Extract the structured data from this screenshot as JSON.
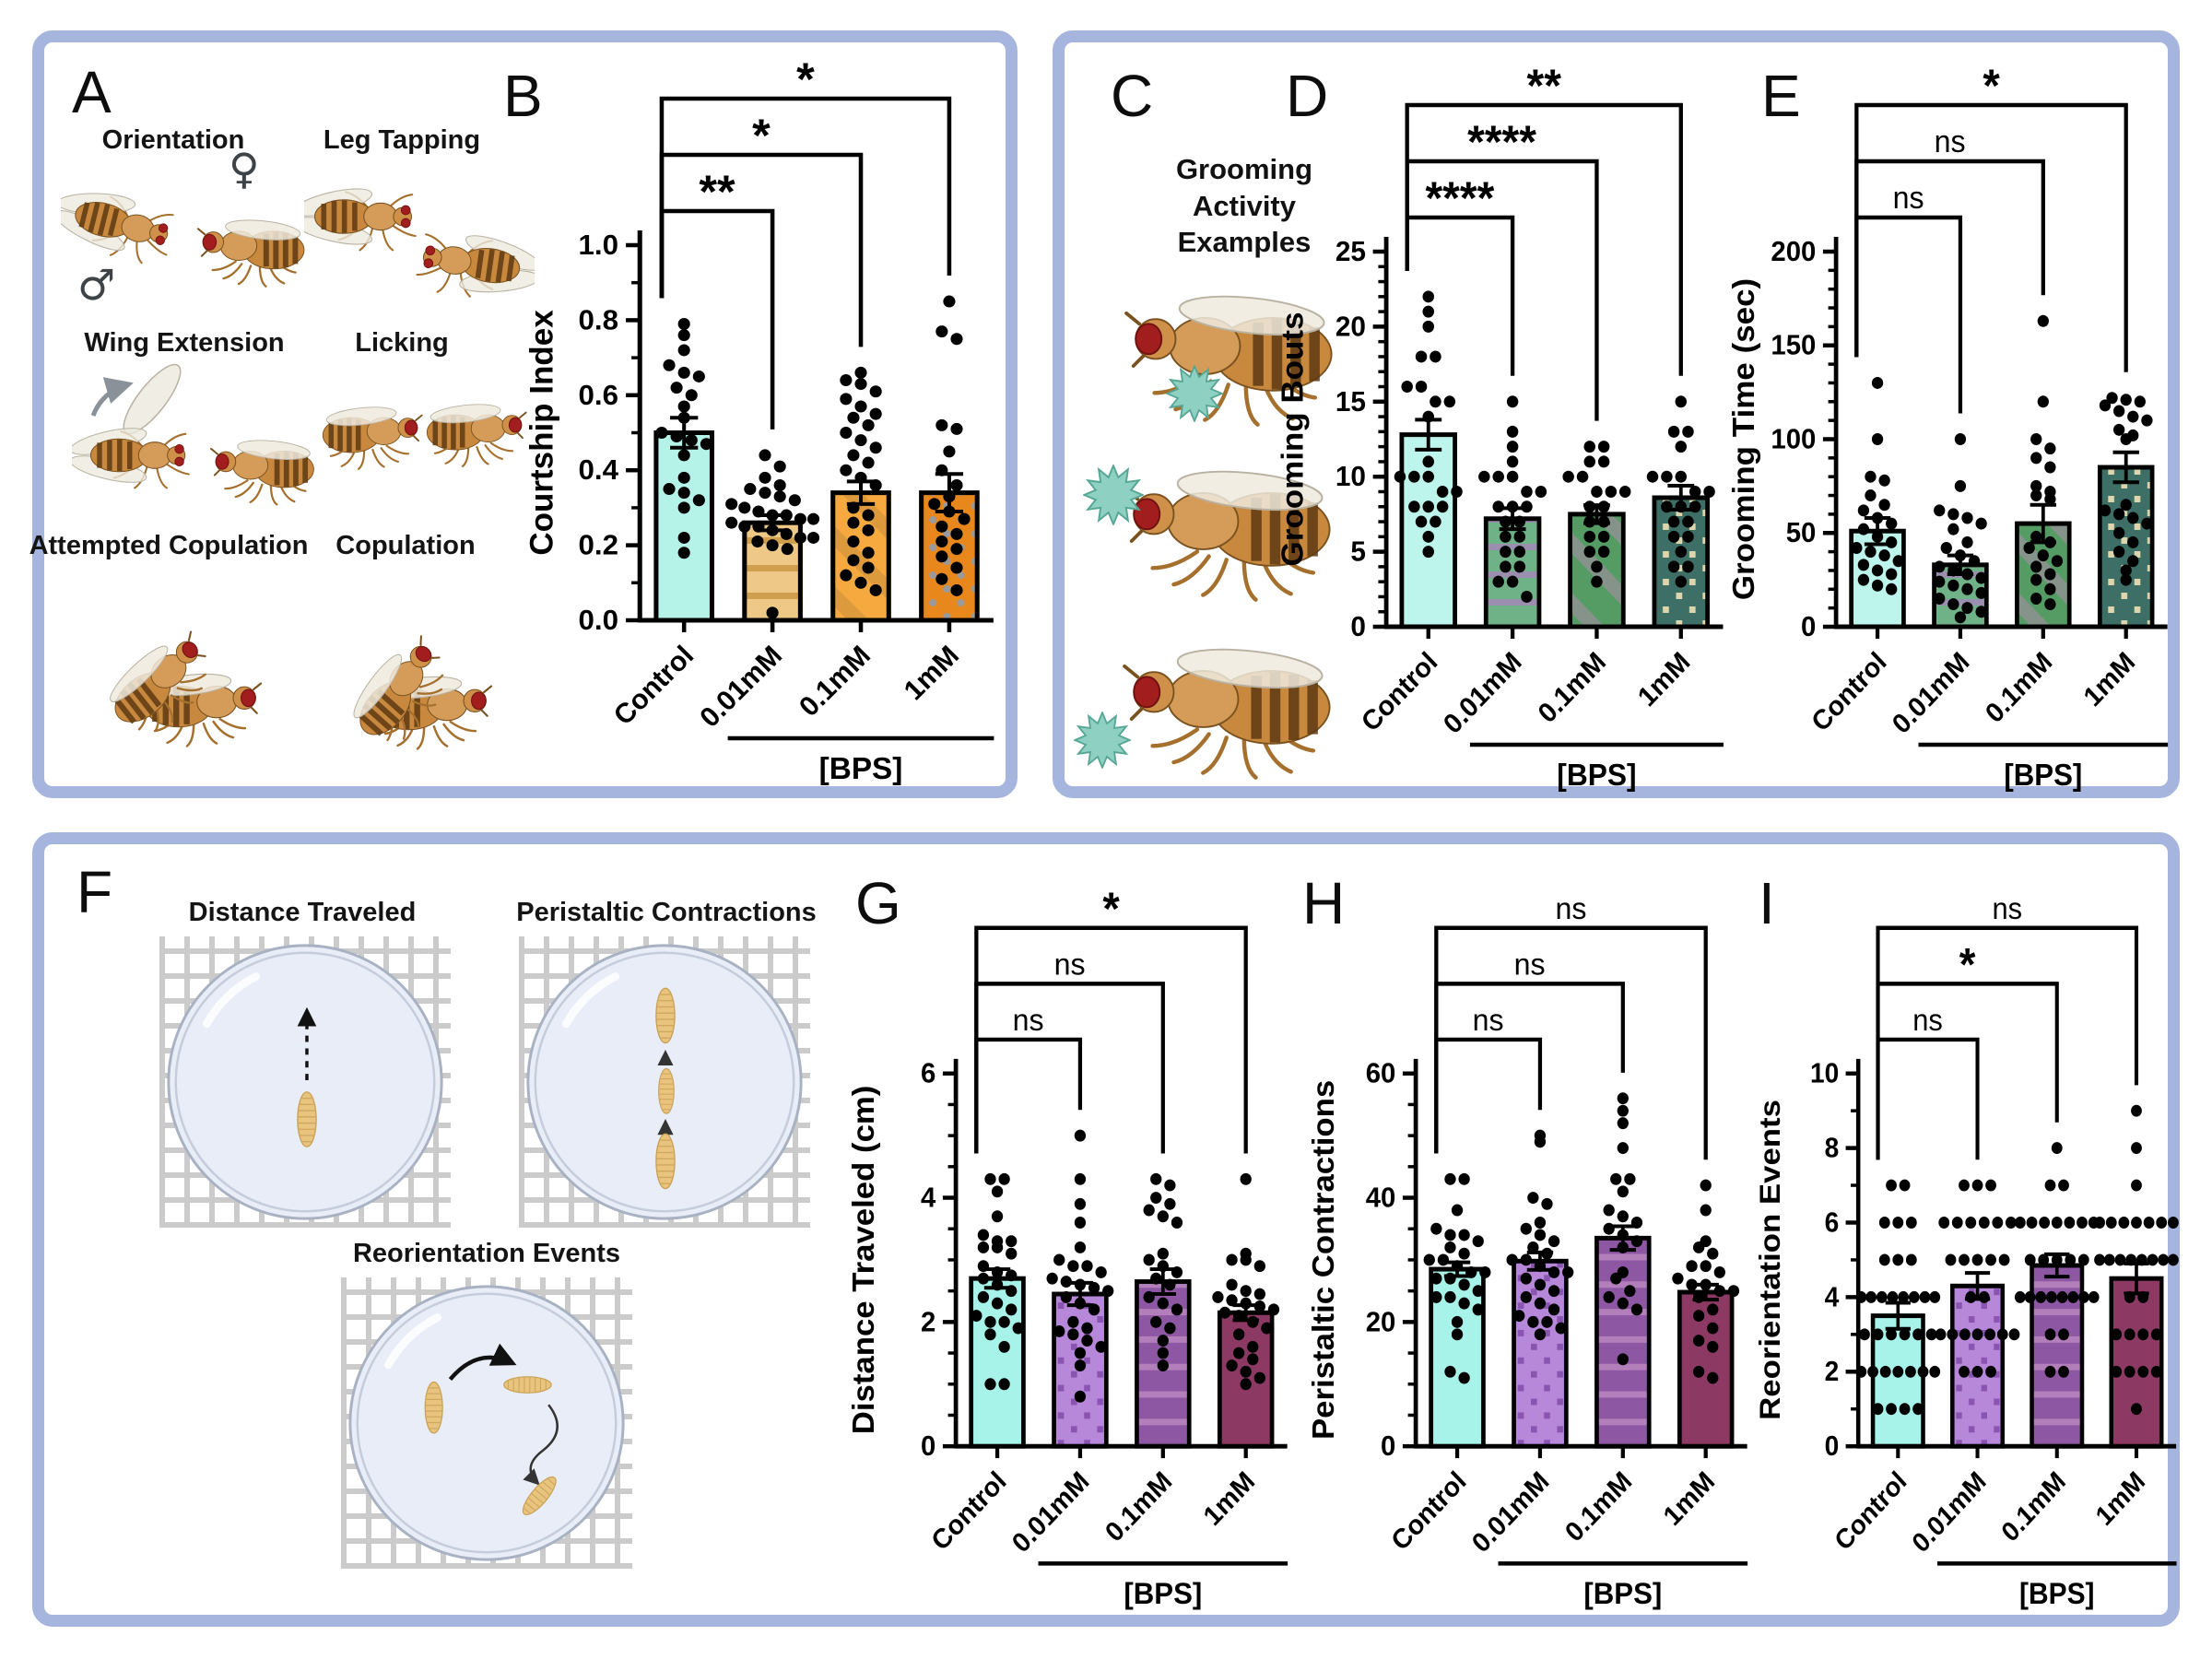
{
  "figure": {
    "border_color": "#a6b5dd",
    "background": "#ffffff"
  },
  "panel_letters": {
    "A": "A",
    "B": "B",
    "C": "C",
    "D": "D",
    "E": "E",
    "F": "F",
    "G": "G",
    "H": "H",
    "I": "I"
  },
  "panel_a": {
    "behaviors": [
      "Orientation",
      "Leg Tapping",
      "Wing Extension",
      "Licking",
      "Attempted Copulation",
      "Copulation"
    ],
    "male_symbol": "♂",
    "female_symbol": "♀"
  },
  "panel_c": {
    "title_lines": [
      "Grooming",
      "Activity",
      "Examples"
    ]
  },
  "panel_f": {
    "labels": [
      "Distance Traveled",
      "Peristaltic Contractions",
      "Reorientation Events"
    ]
  },
  "x_axis": {
    "categories": [
      "Control",
      "0.01mM",
      "0.1mM",
      "1mM"
    ],
    "group_label": "[BPS]"
  },
  "chart_data": [
    {
      "panel": "B",
      "type": "bar",
      "ylabel": "Courtship Index",
      "ylim": [
        0,
        1.0
      ],
      "ytick_step": 0.2,
      "yminor_step": 0.1,
      "ytick_decimals": 1,
      "categories": [
        "Control",
        "0.01mM",
        "0.1mM",
        "1mM"
      ],
      "group_label": "[BPS]",
      "values": [
        0.5,
        0.26,
        0.34,
        0.34
      ],
      "errors": [
        0.04,
        0.02,
        0.03,
        0.05
      ],
      "significance": [
        {
          "from": "Control",
          "to": "0.01mM",
          "label": "**"
        },
        {
          "from": "Control",
          "to": "0.1mM",
          "label": "*"
        },
        {
          "from": "Control",
          "to": "1mM",
          "label": "*"
        }
      ],
      "bars": [
        {
          "fill": "#b5f2e7",
          "pattern": "solid",
          "pattern_color": ""
        },
        {
          "fill": "#eec886",
          "pattern": "hstripe",
          "pattern_color": "#cf9f4e"
        },
        {
          "fill": "#f5a93e",
          "pattern": "diag",
          "pattern_color": "#dd9a3c"
        },
        {
          "fill": "#e8871c",
          "pattern": "dots",
          "pattern_color": "#9a9a9a"
        }
      ],
      "points": [
        [
          0.79,
          0.76,
          0.72,
          0.68,
          0.66,
          0.65,
          0.62,
          0.6,
          0.57,
          0.54,
          0.5,
          0.49,
          0.48,
          0.47,
          0.44,
          0.38,
          0.35,
          0.34,
          0.32,
          0.3,
          0.22,
          0.18
        ],
        [
          0.44,
          0.41,
          0.38,
          0.36,
          0.35,
          0.34,
          0.33,
          0.32,
          0.31,
          0.3,
          0.29,
          0.28,
          0.28,
          0.27,
          0.27,
          0.26,
          0.25,
          0.25,
          0.24,
          0.23,
          0.22,
          0.22,
          0.21,
          0.2,
          0.19,
          0.02
        ],
        [
          0.66,
          0.64,
          0.63,
          0.61,
          0.59,
          0.57,
          0.55,
          0.54,
          0.52,
          0.5,
          0.48,
          0.46,
          0.44,
          0.42,
          0.4,
          0.38,
          0.36,
          0.3,
          0.28,
          0.26,
          0.24,
          0.21,
          0.18,
          0.16,
          0.14,
          0.12,
          0.1,
          0.08
        ],
        [
          0.85,
          0.77,
          0.75,
          0.52,
          0.51,
          0.45,
          0.4,
          0.36,
          0.33,
          0.31,
          0.29,
          0.27,
          0.25,
          0.23,
          0.21,
          0.19,
          0.17,
          0.14,
          0.11,
          0.08
        ]
      ]
    },
    {
      "panel": "D",
      "type": "bar",
      "ylabel": "Grooming Bouts",
      "ylim": [
        0,
        25
      ],
      "ytick_step": 5,
      "yminor_step": 1,
      "ytick_decimals": 0,
      "categories": [
        "Control",
        "0.01mM",
        "0.1mM",
        "1mM"
      ],
      "group_label": "[BPS]",
      "values": [
        12.8,
        7.2,
        7.5,
        8.6
      ],
      "errors": [
        1.0,
        0.7,
        0.6,
        0.8
      ],
      "significance": [
        {
          "from": "Control",
          "to": "0.01mM",
          "label": "****"
        },
        {
          "from": "Control",
          "to": "0.1mM",
          "label": "****"
        },
        {
          "from": "Control",
          "to": "1mM",
          "label": "**"
        }
      ],
      "bars": [
        {
          "fill": "#bdf4ec",
          "pattern": "solid",
          "pattern_color": ""
        },
        {
          "fill": "#6fb287",
          "pattern": "hstripe",
          "pattern_color": "#9a8fae"
        },
        {
          "fill": "#549c63",
          "pattern": "diag",
          "pattern_color": "#85938a"
        },
        {
          "fill": "#3d6f66",
          "pattern": "sqdots",
          "pattern_color": "#ddd6ad"
        }
      ],
      "points": [
        [
          22,
          21,
          20,
          18,
          18,
          16,
          16,
          15,
          15,
          14,
          11,
          10,
          10,
          10,
          9,
          9,
          8,
          8,
          8,
          7,
          7,
          6,
          5
        ],
        [
          15,
          13,
          12,
          11,
          10,
          10,
          10,
          9,
          9,
          8,
          8,
          8,
          7,
          7,
          6,
          6,
          5,
          5,
          4,
          4,
          3,
          3,
          2
        ],
        [
          12,
          12,
          11,
          11,
          10,
          10,
          9,
          9,
          9,
          8,
          8,
          7,
          7,
          6,
          6,
          5,
          5,
          4,
          3
        ],
        [
          15,
          13,
          13,
          12,
          10,
          10,
          10,
          9,
          9,
          8,
          8,
          8,
          7,
          7,
          6,
          6,
          5,
          4,
          4,
          3
        ]
      ]
    },
    {
      "panel": "E",
      "type": "bar",
      "ylabel": "Grooming Time (sec)",
      "ylim": [
        0,
        200
      ],
      "ytick_step": 50,
      "yminor_step": 10,
      "ytick_decimals": 0,
      "categories": [
        "Control",
        "0.01mM",
        "0.1mM",
        "1mM"
      ],
      "group_label": "[BPS]",
      "values": [
        51,
        33,
        55,
        85
      ],
      "errors": [
        7,
        5,
        10,
        8
      ],
      "significance": [
        {
          "from": "Control",
          "to": "0.01mM",
          "label": "ns"
        },
        {
          "from": "Control",
          "to": "0.1mM",
          "label": "ns"
        },
        {
          "from": "Control",
          "to": "1mM",
          "label": "*"
        }
      ],
      "bars": [
        {
          "fill": "#bdf4ec",
          "pattern": "solid",
          "pattern_color": ""
        },
        {
          "fill": "#6fb287",
          "pattern": "hstripe",
          "pattern_color": "#9a8fae"
        },
        {
          "fill": "#549c63",
          "pattern": "diag",
          "pattern_color": "#85938a"
        },
        {
          "fill": "#3d6f66",
          "pattern": "sqdots",
          "pattern_color": "#ddd6ad"
        }
      ],
      "points": [
        [
          130,
          100,
          80,
          78,
          70,
          65,
          62,
          58,
          55,
          52,
          48,
          45,
          42,
          40,
          38,
          35,
          33,
          30,
          28,
          25,
          22,
          20
        ],
        [
          100,
          75,
          62,
          60,
          58,
          55,
          52,
          45,
          42,
          38,
          35,
          32,
          30,
          28,
          26,
          24,
          22,
          20,
          18,
          15,
          12,
          10,
          8,
          5
        ],
        [
          163,
          120,
          100,
          95,
          90,
          85,
          75,
          72,
          70,
          68,
          48,
          45,
          42,
          38,
          35,
          32,
          28,
          25,
          20,
          15,
          12
        ],
        [
          122,
          121,
          120,
          118,
          115,
          112,
          110,
          105,
          102,
          100,
          65,
          62,
          60,
          58,
          55,
          50,
          45,
          40,
          35,
          30,
          25
        ]
      ]
    },
    {
      "panel": "G",
      "type": "bar",
      "ylabel": "Distance Traveled (cm)",
      "ylim": [
        0,
        6
      ],
      "ytick_step": 2,
      "yminor_step": 0.5,
      "ytick_decimals": 0,
      "categories": [
        "Control",
        "0.01mM",
        "0.1mM",
        "1mM"
      ],
      "group_label": "[BPS]",
      "values": [
        2.7,
        2.45,
        2.65,
        2.15
      ],
      "errors": [
        0.15,
        0.18,
        0.2,
        0.12
      ],
      "significance": [
        {
          "from": "Control",
          "to": "0.01mM",
          "label": "ns"
        },
        {
          "from": "Control",
          "to": "0.1mM",
          "label": "ns"
        },
        {
          "from": "Control",
          "to": "1mM",
          "label": "*"
        }
      ],
      "bars": [
        {
          "fill": "#a7f2e9",
          "pattern": "solid",
          "pattern_color": ""
        },
        {
          "fill": "#b787d9",
          "pattern": "sqdots",
          "pattern_color": "#8a55b0"
        },
        {
          "fill": "#8d57a3",
          "pattern": "hstripe",
          "pattern_color": "#b37fba"
        },
        {
          "fill": "#8c3a64",
          "pattern": "solid",
          "pattern_color": ""
        }
      ],
      "points": [
        [
          4.3,
          4.3,
          4.1,
          3.7,
          3.4,
          3.3,
          3.3,
          3.2,
          3.2,
          3.1,
          2.9,
          2.8,
          2.75,
          2.7,
          2.6,
          2.5,
          2.4,
          2.3,
          2.2,
          2.1,
          2.0,
          2.0,
          1.9,
          1.8,
          1.6,
          1.0,
          1.0
        ],
        [
          5.0,
          4.3,
          3.9,
          3.6,
          3.2,
          3.0,
          2.9,
          2.9,
          2.8,
          2.7,
          2.65,
          2.6,
          2.55,
          2.5,
          2.4,
          2.3,
          2.2,
          2.0,
          1.9,
          1.85,
          1.8,
          1.7,
          1.6,
          1.5,
          1.3,
          0.8
        ],
        [
          4.3,
          4.2,
          4.0,
          3.9,
          3.8,
          3.7,
          3.6,
          3.1,
          3.0,
          2.9,
          2.8,
          2.7,
          2.6,
          2.4,
          2.3,
          2.2,
          2.0,
          1.9,
          1.7,
          1.5,
          1.3
        ],
        [
          4.3,
          3.1,
          3.0,
          3.0,
          2.9,
          2.6,
          2.5,
          2.45,
          2.4,
          2.35,
          2.3,
          2.25,
          2.2,
          2.15,
          2.1,
          2.0,
          1.9,
          1.8,
          1.6,
          1.5,
          1.4,
          1.3,
          1.2,
          1.1,
          1.0
        ]
      ]
    },
    {
      "panel": "H",
      "type": "bar",
      "ylabel": "Peristaltic Contractions",
      "ylim": [
        0,
        60
      ],
      "ytick_step": 20,
      "yminor_step": 5,
      "ytick_decimals": 0,
      "categories": [
        "Control",
        "0.01mM",
        "0.1mM",
        "1mM"
      ],
      "group_label": "[BPS]",
      "values": [
        28.5,
        29.8,
        33.5,
        24.8
      ],
      "errors": [
        1.1,
        1.4,
        1.9,
        1.2
      ],
      "significance": [
        {
          "from": "Control",
          "to": "0.01mM",
          "label": "ns"
        },
        {
          "from": "Control",
          "to": "0.1mM",
          "label": "ns"
        },
        {
          "from": "Control",
          "to": "1mM",
          "label": "ns"
        }
      ],
      "bars": [
        {
          "fill": "#a7f2e9",
          "pattern": "solid",
          "pattern_color": ""
        },
        {
          "fill": "#b787d9",
          "pattern": "sqdots",
          "pattern_color": "#8a55b0"
        },
        {
          "fill": "#8d57a3",
          "pattern": "hstripe",
          "pattern_color": "#b37fba"
        },
        {
          "fill": "#8c3a64",
          "pattern": "solid",
          "pattern_color": ""
        }
      ],
      "points": [
        [
          43,
          43,
          38,
          35,
          34,
          34,
          33,
          32,
          31,
          30,
          30,
          29,
          28,
          28,
          27,
          27,
          26,
          25,
          24,
          24,
          23,
          22,
          20,
          18,
          12,
          11
        ],
        [
          50,
          49,
          40,
          39,
          36,
          35,
          34,
          33,
          32,
          31,
          30,
          30,
          29,
          28,
          28,
          27,
          26,
          25,
          24,
          23,
          22,
          21,
          20,
          20,
          19,
          18
        ],
        [
          56,
          54,
          52,
          48,
          43,
          43,
          41,
          38,
          37,
          36,
          35,
          34,
          33,
          32,
          28,
          27,
          25,
          24,
          23,
          22,
          14
        ],
        [
          42,
          38,
          33,
          32,
          31,
          29,
          29,
          28,
          27,
          26,
          26,
          25,
          25,
          24,
          22,
          21,
          19,
          17,
          16,
          12,
          11
        ]
      ]
    },
    {
      "panel": "I",
      "type": "bar",
      "ylabel": "Reorientation Events",
      "ylim": [
        0,
        10
      ],
      "ytick_step": 2,
      "yminor_step": 1,
      "ytick_decimals": 0,
      "categories": [
        "Control",
        "0.01mM",
        "0.1mM",
        "1mM"
      ],
      "group_label": "[BPS]",
      "values": [
        3.5,
        4.3,
        4.85,
        4.5
      ],
      "errors": [
        0.35,
        0.35,
        0.3,
        0.4
      ],
      "significance": [
        {
          "from": "Control",
          "to": "0.01mM",
          "label": "ns"
        },
        {
          "from": "Control",
          "to": "0.1mM",
          "label": "*"
        },
        {
          "from": "Control",
          "to": "1mM",
          "label": "ns"
        }
      ],
      "bars": [
        {
          "fill": "#a7f2e9",
          "pattern": "solid",
          "pattern_color": ""
        },
        {
          "fill": "#b787d9",
          "pattern": "sqdots",
          "pattern_color": "#8a55b0"
        },
        {
          "fill": "#8d57a3",
          "pattern": "hstripe",
          "pattern_color": "#b37fba"
        },
        {
          "fill": "#8c3a64",
          "pattern": "solid",
          "pattern_color": ""
        }
      ],
      "points": [
        [
          7,
          7,
          6,
          6,
          6,
          5,
          5,
          5,
          4,
          4,
          4,
          4,
          4,
          4,
          4,
          4,
          3,
          3,
          3,
          3,
          3,
          3,
          2,
          2,
          2,
          2,
          2,
          2,
          2,
          1,
          1,
          1,
          1
        ],
        [
          7,
          7,
          7,
          6,
          6,
          6,
          6,
          6,
          6,
          5,
          5,
          5,
          5,
          5,
          4,
          4,
          3,
          3,
          3,
          3,
          3,
          3,
          3,
          2,
          2,
          2
        ],
        [
          8,
          7,
          7,
          6,
          6,
          6,
          6,
          6,
          6,
          6,
          5,
          5,
          5,
          5,
          5,
          4,
          4,
          4,
          4,
          4,
          4,
          4,
          4,
          3,
          3,
          2,
          2
        ],
        [
          9,
          8,
          7,
          6,
          6,
          6,
          6,
          6,
          6,
          6,
          5,
          5,
          5,
          5,
          5,
          5,
          5,
          5,
          4,
          4,
          3,
          3,
          3,
          3,
          2,
          2,
          2,
          2,
          1
        ]
      ]
    }
  ]
}
